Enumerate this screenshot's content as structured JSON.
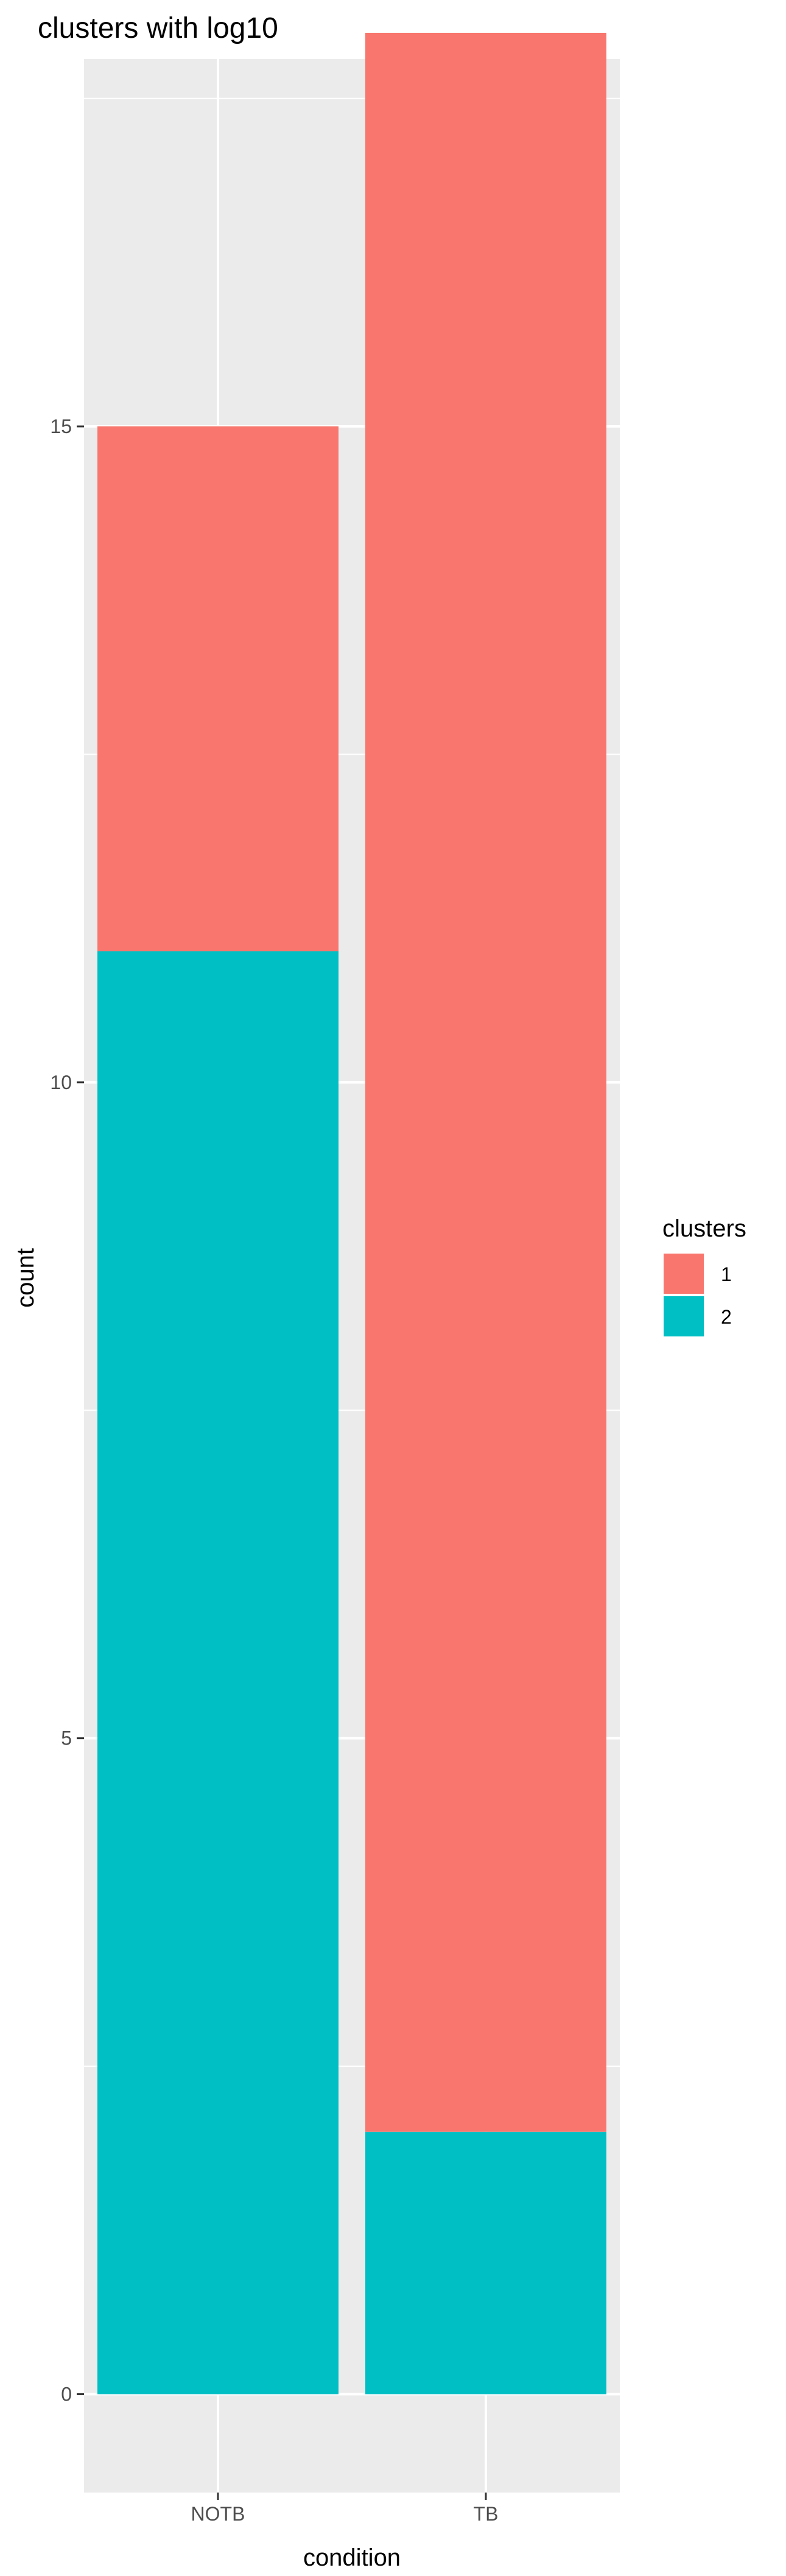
{
  "chart_data": {
    "type": "bar",
    "stacked": true,
    "title": "clusters with log10",
    "xlabel": "condition",
    "ylabel": "count",
    "categories": [
      "NOTB",
      "TB"
    ],
    "series": [
      {
        "name": "1",
        "values": [
          4,
          16
        ],
        "color": "#F8766D"
      },
      {
        "name": "2",
        "values": [
          11,
          2
        ],
        "color": "#00BFC4"
      }
    ],
    "ylim": [
      -0.75,
      17.8
    ],
    "yticks": [
      0,
      5,
      10,
      15
    ],
    "ytick_labels": [
      "0",
      "5",
      "10",
      "15"
    ],
    "y_minor_ticks": [
      2.5,
      7.5,
      12.5,
      17.5
    ],
    "grid": true,
    "panel_background": "#EBEBEB",
    "grid_color": "#FFFFFF",
    "legend": {
      "title": "clusters",
      "position": "right",
      "entries": [
        "1",
        "2"
      ]
    }
  }
}
